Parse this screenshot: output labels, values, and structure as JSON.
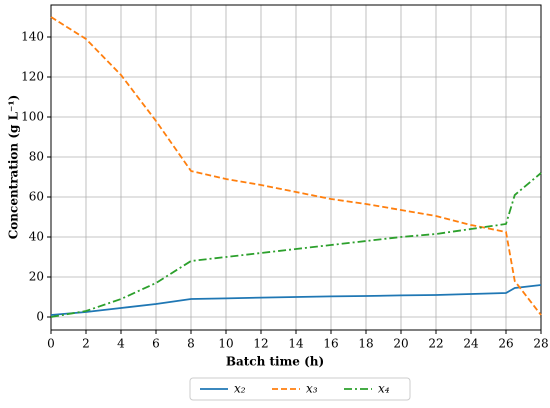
{
  "chart_data": {
    "type": "line",
    "xlabel": "Batch time (h)",
    "ylabel": "Concentration (g L⁻¹)",
    "x": [
      0,
      2,
      4,
      6,
      8,
      10,
      12,
      14,
      16,
      18,
      20,
      22,
      24,
      26,
      26.5,
      28
    ],
    "series": [
      {
        "name": "x₂",
        "color": "#1f77b4",
        "dash": "solid",
        "values": [
          1,
          2.5,
          4.5,
          6.5,
          9,
          9.3,
          9.7,
          10,
          10.3,
          10.5,
          10.8,
          11,
          11.5,
          12,
          14.5,
          16
        ]
      },
      {
        "name": "x₃",
        "color": "#ff7f0e",
        "dash": "dashed",
        "values": [
          150,
          139,
          121,
          98,
          73,
          69,
          66,
          62.5,
          59,
          56.5,
          53.5,
          50.5,
          46,
          42.5,
          18,
          1
        ]
      },
      {
        "name": "x₄",
        "color": "#2ca02c",
        "dash": "dashdot",
        "values": [
          0,
          3,
          9,
          17,
          28,
          30,
          32,
          34,
          36,
          38,
          40,
          41.5,
          44,
          46.5,
          61,
          72
        ]
      }
    ],
    "xlim": [
      0,
      28
    ],
    "xticks": [
      0,
      2,
      4,
      6,
      8,
      10,
      12,
      14,
      16,
      18,
      20,
      22,
      24,
      26,
      28
    ],
    "ylim": [
      -6.5,
      156
    ],
    "yticks": [
      0,
      20,
      40,
      60,
      80,
      100,
      120,
      140
    ],
    "grid": true,
    "legend": "below"
  }
}
